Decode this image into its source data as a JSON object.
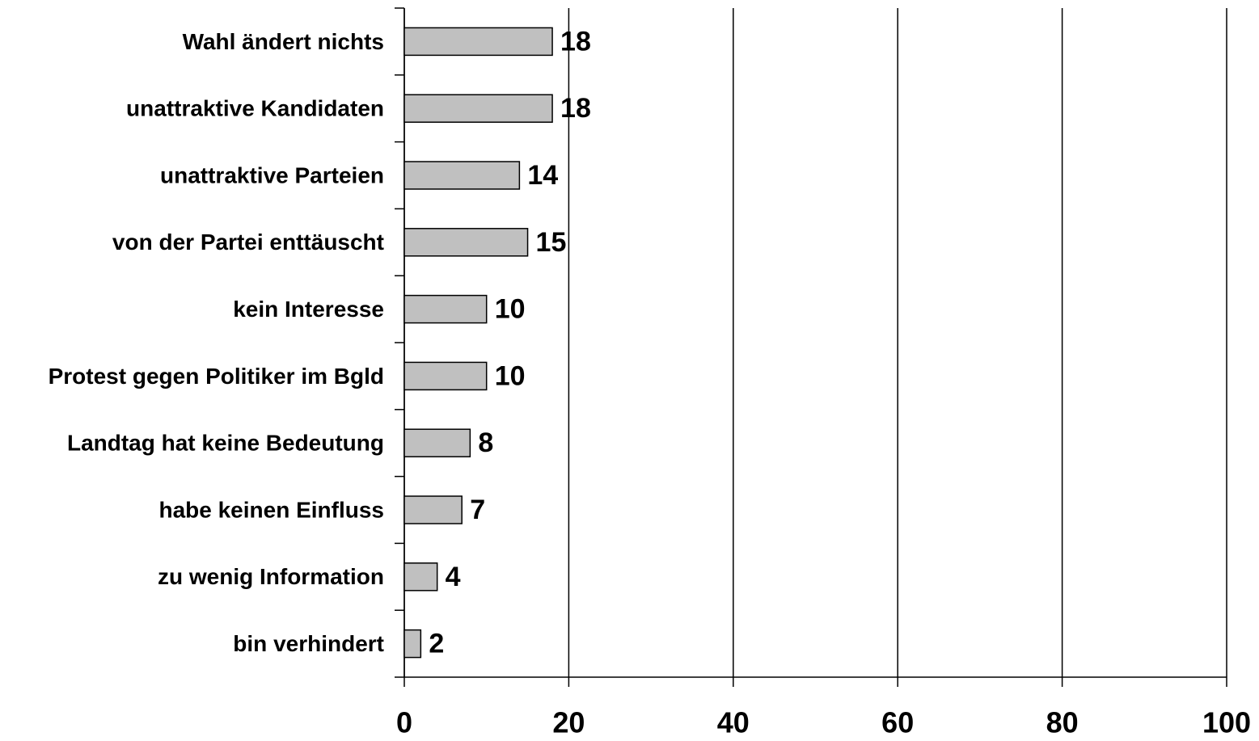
{
  "chart_data": {
    "type": "barh",
    "categories": [
      "Wahl ändert nichts",
      "unattraktive Kandidaten",
      "unattraktive Parteien",
      "von der Partei enttäuscht",
      "kein Interesse",
      "Protest gegen Politiker im Bgld",
      "Landtag hat keine Bedeutung",
      "habe keinen Einfluss",
      "zu wenig Information",
      "bin verhindert"
    ],
    "values": [
      18,
      18,
      14,
      15,
      10,
      10,
      8,
      7,
      4,
      2
    ],
    "color": "#c0c0c0",
    "xlim": [
      0,
      100
    ],
    "xticks": [
      0,
      20,
      40,
      60,
      80,
      100
    ],
    "grid": true
  }
}
